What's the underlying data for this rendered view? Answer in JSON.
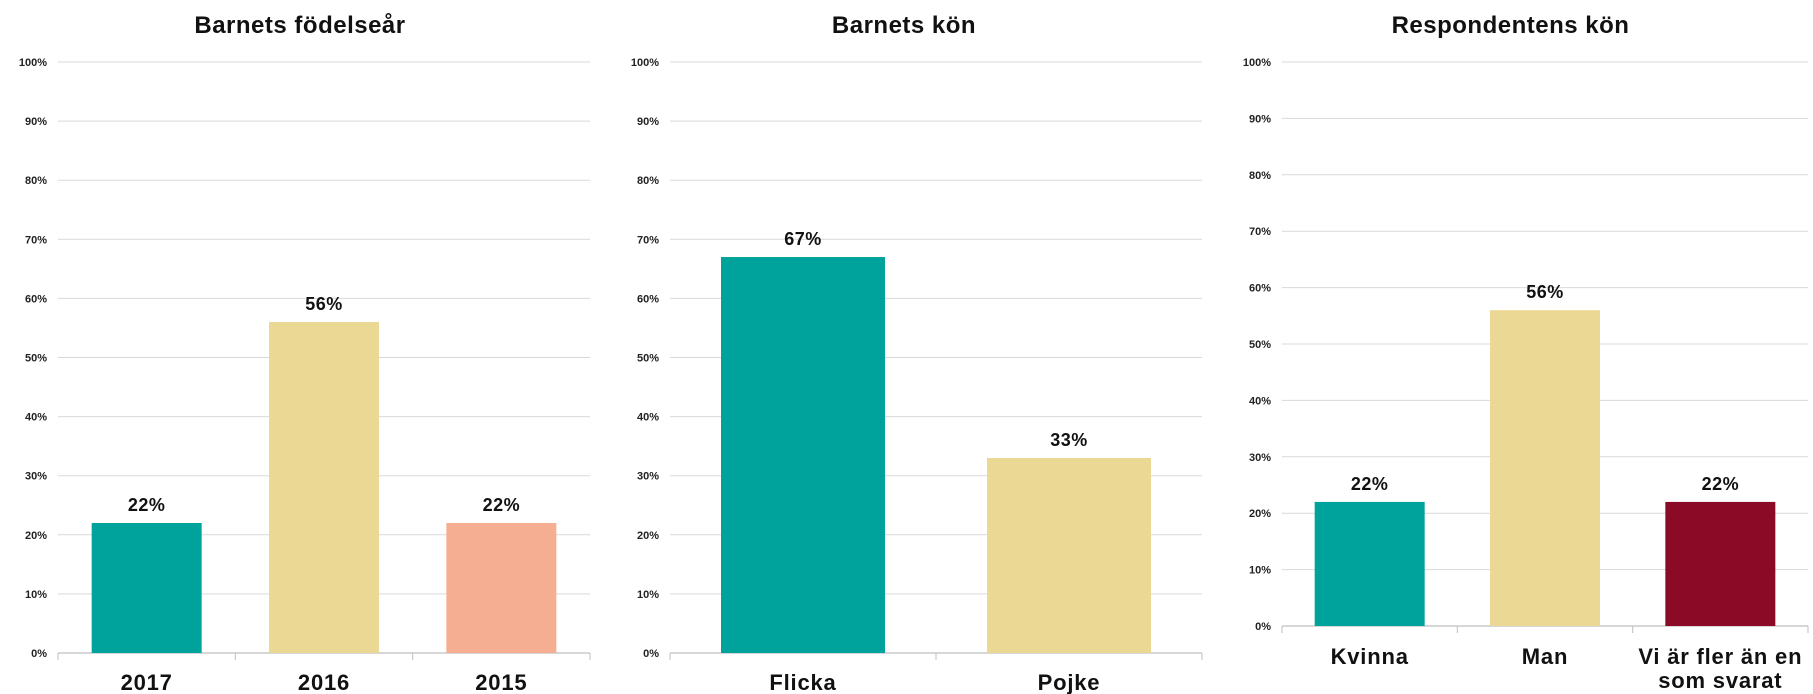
{
  "chart_data": [
    {
      "type": "bar",
      "title": "Barnets födelseår",
      "categories": [
        "2017",
        "2016",
        "2015"
      ],
      "values": [
        22,
        56,
        22
      ],
      "value_labels": [
        "22%",
        "56%",
        "22%"
      ],
      "colors": [
        "#00A39B",
        "#EBD894",
        "#F6AE93"
      ],
      "ylim": [
        0,
        100
      ],
      "yticks": [
        "0%",
        "10%",
        "20%",
        "30%",
        "40%",
        "50%",
        "60%",
        "70%",
        "80%",
        "90%",
        "100%"
      ],
      "grid": true
    },
    {
      "type": "bar",
      "title": "Barnets kön",
      "categories": [
        "Flicka",
        "Pojke"
      ],
      "values": [
        67,
        33
      ],
      "value_labels": [
        "67%",
        "33%"
      ],
      "colors": [
        "#00A39B",
        "#EBD894"
      ],
      "ylim": [
        0,
        100
      ],
      "yticks": [
        "0%",
        "10%",
        "20%",
        "30%",
        "40%",
        "50%",
        "60%",
        "70%",
        "80%",
        "90%",
        "100%"
      ],
      "grid": true
    },
    {
      "type": "bar",
      "title": "Respondentens kön",
      "categories": [
        "Kvinna",
        "Man",
        "Vi är fler än en som svarat"
      ],
      "values": [
        22,
        56,
        22
      ],
      "value_labels": [
        "22%",
        "56%",
        "22%"
      ],
      "colors": [
        "#00A39B",
        "#EBD894",
        "#8B0A25"
      ],
      "ylim": [
        0,
        100
      ],
      "yticks": [
        "0%",
        "10%",
        "20%",
        "30%",
        "40%",
        "50%",
        "60%",
        "70%",
        "80%",
        "90%",
        "100%"
      ],
      "grid": true
    }
  ]
}
